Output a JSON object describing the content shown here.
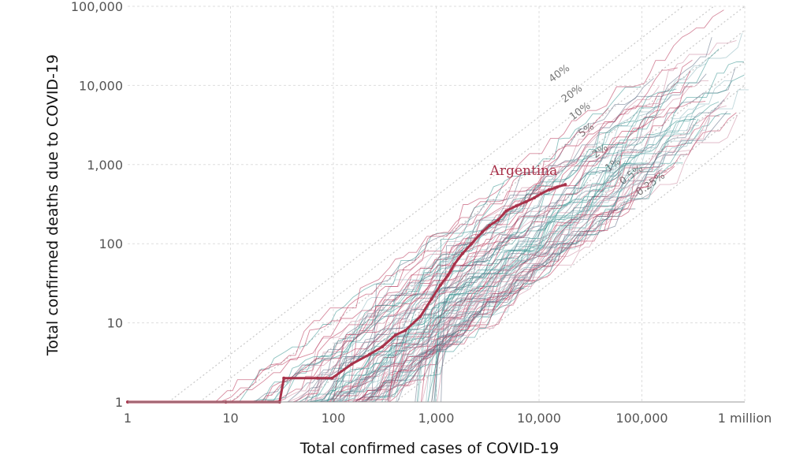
{
  "chart_data": {
    "type": "line",
    "title": "",
    "xlabel": "Total confirmed cases of COVID-19",
    "ylabel": "Total confirmed deaths due to COVID-19",
    "x_scale": "log",
    "y_scale": "log",
    "xlim": [
      1,
      1000000
    ],
    "ylim": [
      1,
      100000
    ],
    "grid": true,
    "x_ticks": [
      {
        "value": 1,
        "label": "1"
      },
      {
        "value": 10,
        "label": "10"
      },
      {
        "value": 100,
        "label": "100"
      },
      {
        "value": 1000,
        "label": "1,000"
      },
      {
        "value": 10000,
        "label": "10,000"
      },
      {
        "value": 100000,
        "label": "100,000"
      },
      {
        "value": 1000000,
        "label": "1 million"
      }
    ],
    "y_ticks": [
      {
        "value": 1,
        "label": "1"
      },
      {
        "value": 10,
        "label": "10"
      },
      {
        "value": 100,
        "label": "100"
      },
      {
        "value": 1000,
        "label": "1,000"
      },
      {
        "value": 10000,
        "label": "10,000"
      },
      {
        "value": 100000,
        "label": "100,000"
      }
    ],
    "reference_lines": [
      {
        "label": "40%",
        "rate": 0.4
      },
      {
        "label": "20%",
        "rate": 0.2
      },
      {
        "label": "10%",
        "rate": 0.1
      },
      {
        "label": "5%",
        "rate": 0.05
      },
      {
        "label": "2%",
        "rate": 0.02
      },
      {
        "label": "1%",
        "rate": 0.01
      },
      {
        "label": "0.5%",
        "rate": 0.005
      },
      {
        "label": "0.25%",
        "rate": 0.0025
      }
    ],
    "highlight_series": {
      "name": "Argentina",
      "color": "#a8324a",
      "points": [
        [
          1,
          1
        ],
        [
          9,
          1
        ],
        [
          30,
          1
        ],
        [
          33,
          2
        ],
        [
          70,
          2
        ],
        [
          97,
          2
        ],
        [
          150,
          3
        ],
        [
          225,
          4
        ],
        [
          300,
          5
        ],
        [
          400,
          7
        ],
        [
          500,
          8
        ],
        [
          700,
          12
        ],
        [
          900,
          20
        ],
        [
          1100,
          30
        ],
        [
          1300,
          40
        ],
        [
          1500,
          55
        ],
        [
          1800,
          75
        ],
        [
          2200,
          100
        ],
        [
          2800,
          140
        ],
        [
          3300,
          170
        ],
        [
          4000,
          200
        ],
        [
          4800,
          260
        ],
        [
          6000,
          300
        ],
        [
          7500,
          340
        ],
        [
          9000,
          380
        ],
        [
          10500,
          430
        ],
        [
          12500,
          480
        ],
        [
          15000,
          520
        ],
        [
          18000,
          560
        ]
      ]
    },
    "background_series_colors": [
      "#b5294e",
      "#2f8f8c",
      "#5d6b83",
      "#c9839a",
      "#8ab6bd"
    ]
  }
}
